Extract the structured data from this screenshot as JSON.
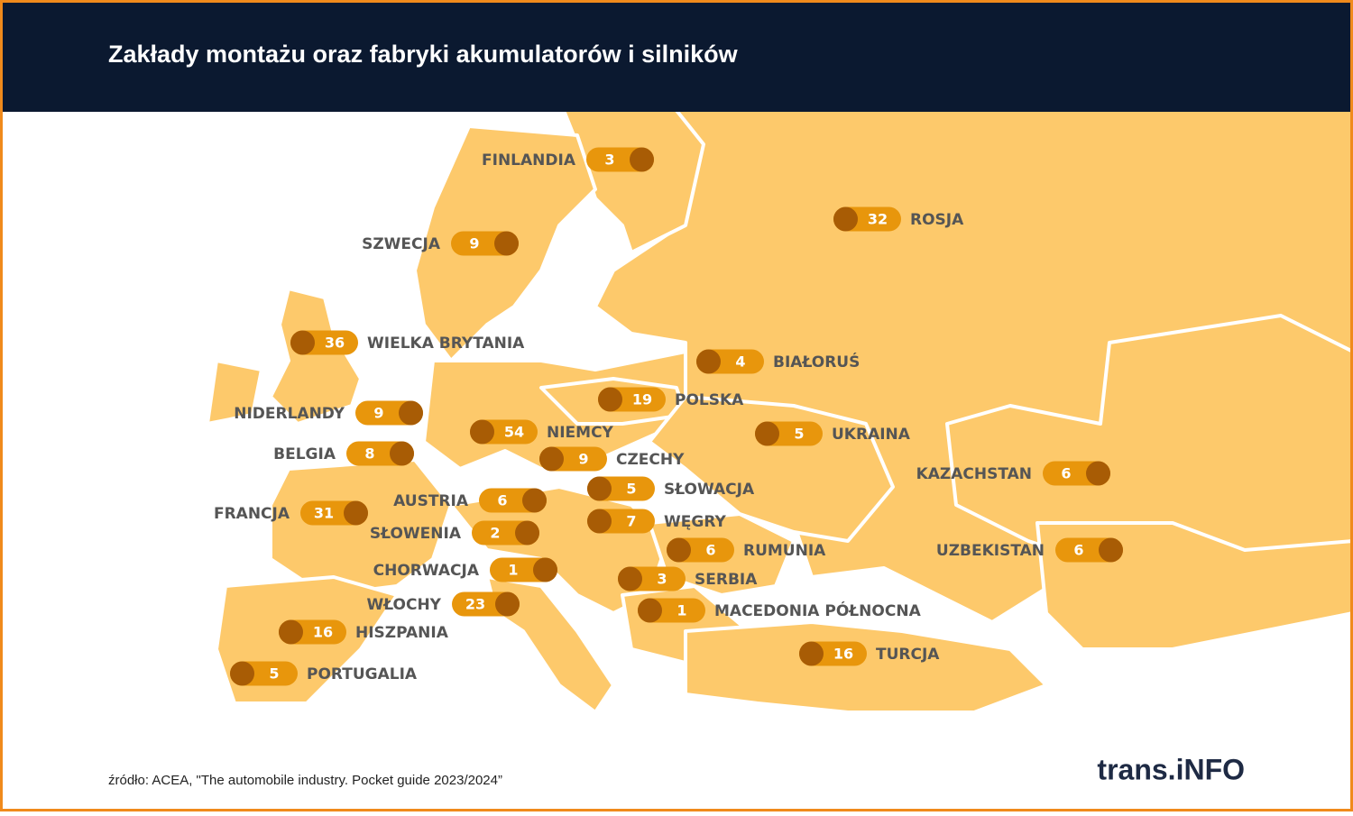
{
  "header": {
    "title": "Zakłady montażu oraz fabryki akumulatorów i silników"
  },
  "countries": [
    {
      "name": "FINLANDIA",
      "value": 3
    },
    {
      "name": "SZWECJA",
      "value": 9
    },
    {
      "name": "WIELKA BRYTANIA",
      "value": 36
    },
    {
      "name": "NIDERLANDY",
      "value": 9
    },
    {
      "name": "BELGIA",
      "value": 8
    },
    {
      "name": "FRANCJA",
      "value": 31
    },
    {
      "name": "NIEMCY",
      "value": 54
    },
    {
      "name": "CZECHY",
      "value": 9
    },
    {
      "name": "AUSTRIA",
      "value": 6
    },
    {
      "name": "SŁOWENIA",
      "value": 2
    },
    {
      "name": "CHORWACJA",
      "value": 1
    },
    {
      "name": "WŁOCHY",
      "value": 23
    },
    {
      "name": "HISZPANIA",
      "value": 16
    },
    {
      "name": "PORTUGALIA",
      "value": 5
    },
    {
      "name": "POLSKA",
      "value": 19
    },
    {
      "name": "SŁOWACJA",
      "value": 5
    },
    {
      "name": "WĘGRY",
      "value": 7
    },
    {
      "name": "RUMUNIA",
      "value": 6
    },
    {
      "name": "SERBIA",
      "value": 3
    },
    {
      "name": "MACEDONIA PÓŁNOCNA",
      "value": 1
    },
    {
      "name": "BIAŁORUŚ",
      "value": 4
    },
    {
      "name": "UKRAINA",
      "value": 5
    },
    {
      "name": "ROSJA",
      "value": 32
    },
    {
      "name": "KAZACHSTAN",
      "value": 6
    },
    {
      "name": "UZBEKISTAN",
      "value": 6
    },
    {
      "name": "TURCJA",
      "value": 16
    }
  ],
  "source": "źródło: ACEA, \"The automobile industry. Pocket guide 2023/2024”",
  "logo": "trans.iNFO"
}
